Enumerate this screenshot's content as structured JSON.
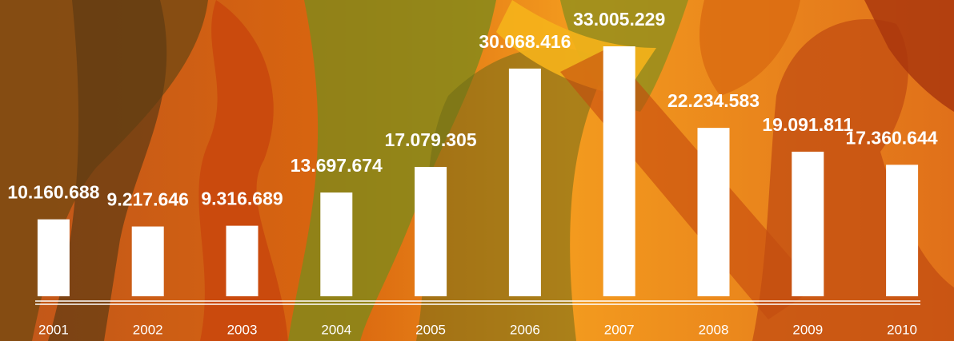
{
  "chart_data": {
    "type": "bar",
    "categories": [
      "2001",
      "2002",
      "2003",
      "2004",
      "2005",
      "2006",
      "2007",
      "2008",
      "2009",
      "2010"
    ],
    "values": [
      10160688,
      9217646,
      9316689,
      13697674,
      17079305,
      30068416,
      33005229,
      22234583,
      19091811,
      17360644
    ],
    "value_labels": [
      "10.160.688",
      "9.217.646",
      "9.316.689",
      "13.697.674",
      "17.079.305",
      "30.068.416",
      "33.005.229",
      "22.234.583",
      "19.091.811",
      "17.360.644"
    ],
    "color": "#ffffff"
  }
}
